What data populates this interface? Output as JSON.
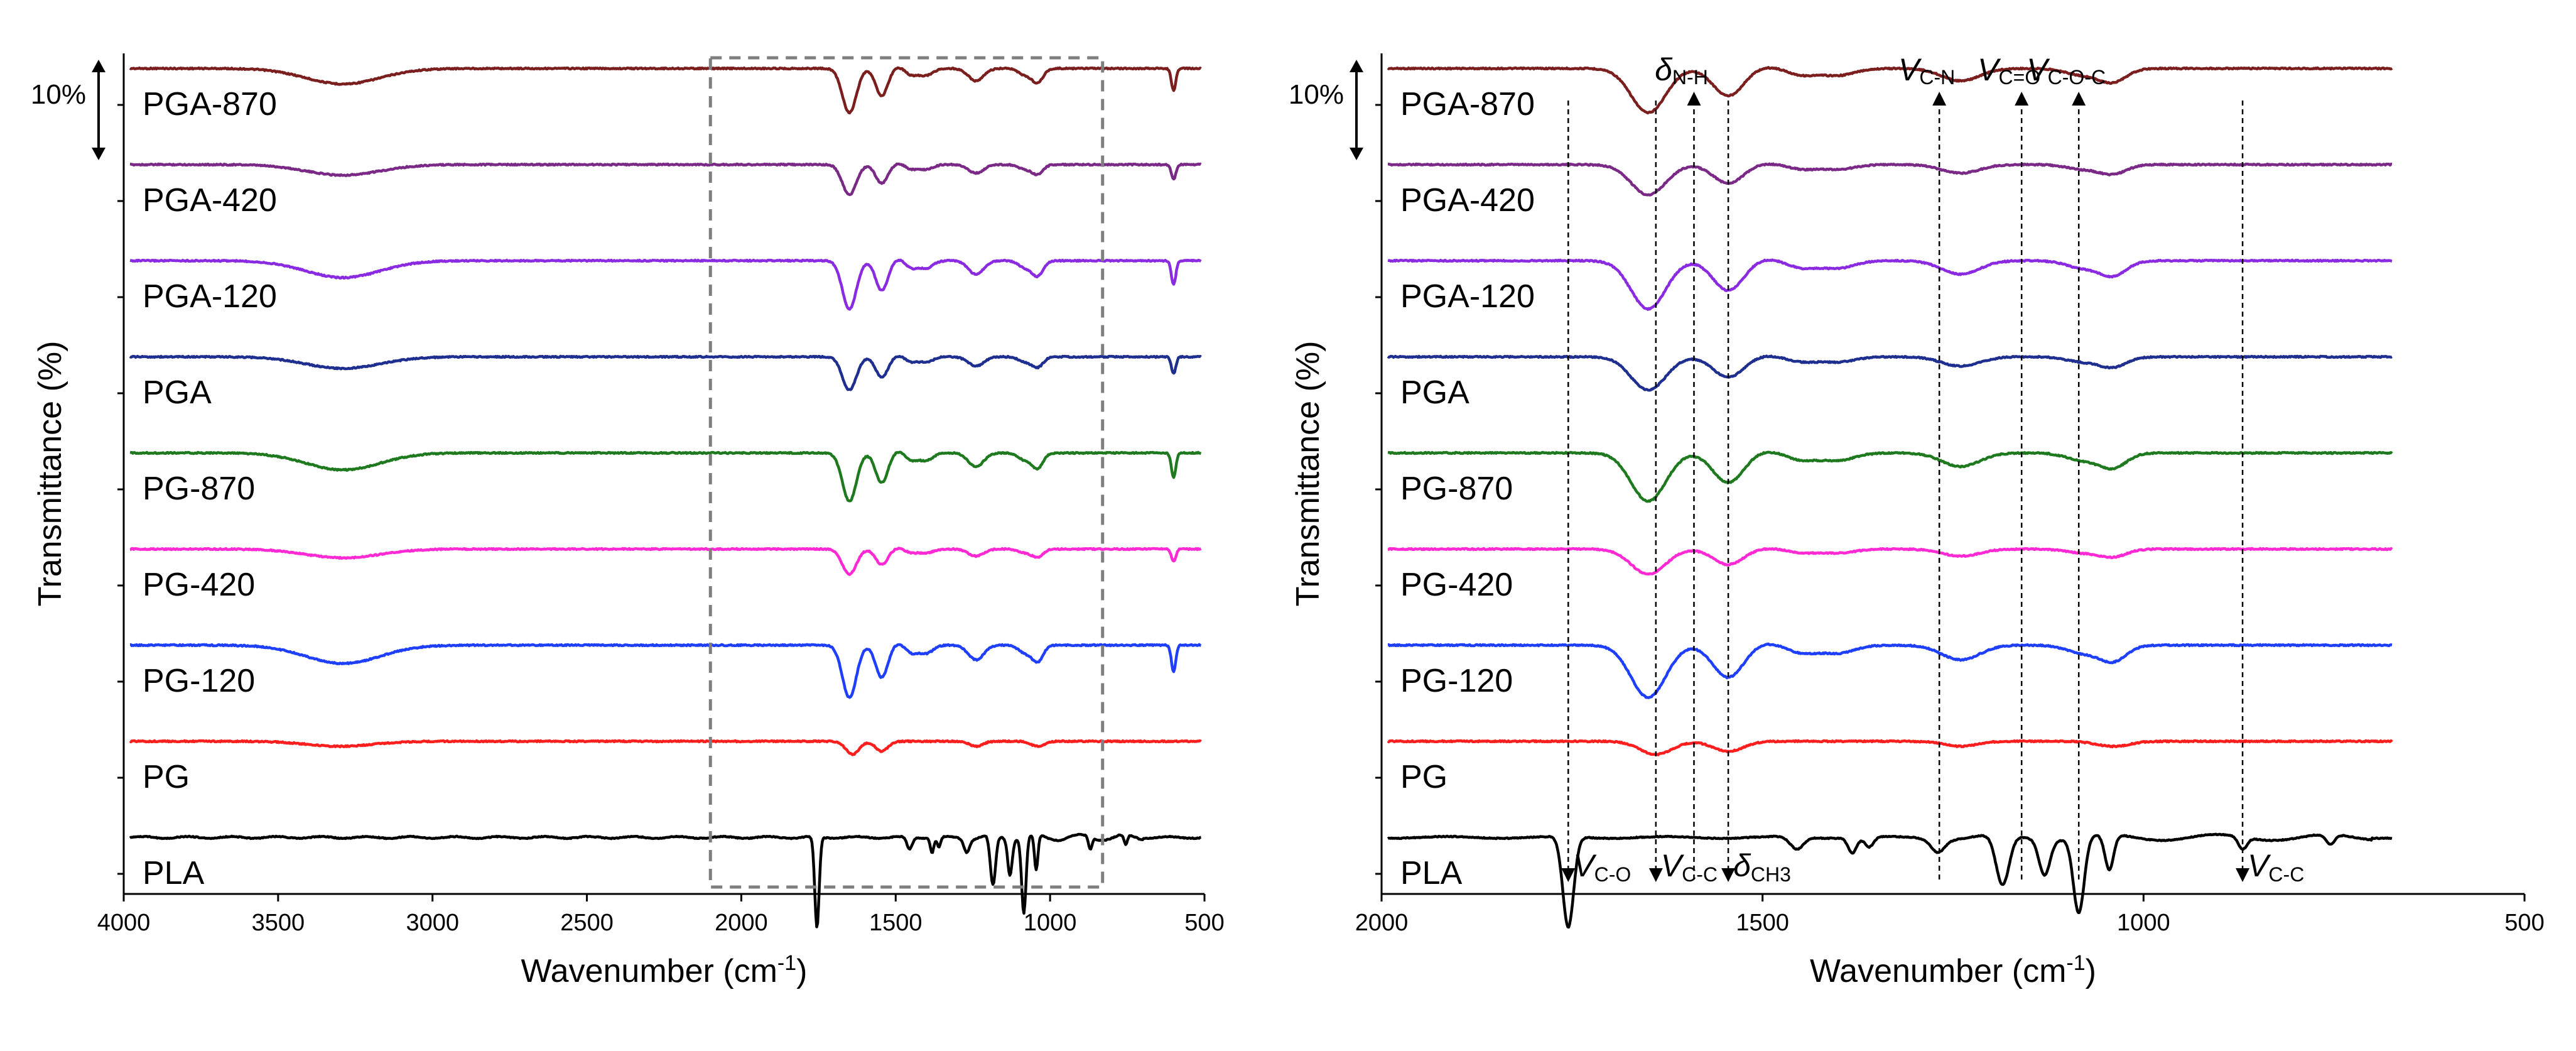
{
  "chart_data": [
    {
      "type": "line",
      "panel": "left",
      "title": "",
      "xlabel": "Wavenumber (cm",
      "xlabel_sup": "-1",
      "xlabel_close": ")",
      "ylabel": "Transmittance (%)",
      "xlim": [
        4000,
        500
      ],
      "x_ticks": [
        "4000",
        "3500",
        "3000",
        "2500",
        "2000",
        "1500",
        "1000",
        "500"
      ],
      "scale_bar_label": "10%",
      "highlight_region": [
        2100,
        830
      ],
      "series": [
        {
          "name": "PGA-870",
          "color": "#7b1e1e",
          "offset": 8
        },
        {
          "name": "PGA-420",
          "color": "#7a2a86",
          "offset": 7
        },
        {
          "name": "PGA-120",
          "color": "#8a2be2",
          "offset": 6
        },
        {
          "name": "PGA",
          "color": "#1f2f8f",
          "offset": 5
        },
        {
          "name": "PG-870",
          "color": "#1f7a1f",
          "offset": 4
        },
        {
          "name": "PG-420",
          "color": "#ff2ad4",
          "offset": 3
        },
        {
          "name": "PG-120",
          "color": "#1f3fff",
          "offset": 2
        },
        {
          "name": "PG",
          "color": "#ff1e1e",
          "offset": 1
        },
        {
          "name": "PLA",
          "color": "#000000",
          "offset": 0
        }
      ]
    },
    {
      "type": "line",
      "panel": "right",
      "title": "",
      "xlabel": "Wavenumber (cm",
      "xlabel_sup": "-1",
      "xlabel_close": ")",
      "ylabel": "Transmittance (%)",
      "xlim": [
        2000,
        500
      ],
      "x_ticks": [
        "2000",
        "1500",
        "1000",
        "500"
      ],
      "scale_bar_label": "10%",
      "series": [
        {
          "name": "PGA-870",
          "color": "#7b1e1e",
          "offset": 8
        },
        {
          "name": "PGA-420",
          "color": "#7a2a86",
          "offset": 7
        },
        {
          "name": "PGA-120",
          "color": "#8a2be2",
          "offset": 6
        },
        {
          "name": "PGA",
          "color": "#1f2f8f",
          "offset": 5
        },
        {
          "name": "PG-870",
          "color": "#1f7a1f",
          "offset": 4
        },
        {
          "name": "PG-420",
          "color": "#ff2ad4",
          "offset": 3
        },
        {
          "name": "PG-120",
          "color": "#1f3fff",
          "offset": 2
        },
        {
          "name": "PG",
          "color": "#ff1e1e",
          "offset": 1
        },
        {
          "name": "PLA",
          "color": "#000000",
          "offset": 0
        }
      ],
      "annotations": [
        {
          "id": "v-co",
          "main": "V",
          "sub": "C-O",
          "wavenumber": 1755,
          "arrow": "down",
          "label_pos": "bottom"
        },
        {
          "id": "v-cc-1",
          "main": "V",
          "sub": "C-C",
          "wavenumber": 1640,
          "arrow": "down",
          "label_pos": "bottom"
        },
        {
          "id": "delta-nh",
          "main": "δ",
          "sub": "N-H",
          "wavenumber": 1590,
          "arrow": "up",
          "label_pos": "top"
        },
        {
          "id": "delta-ch3",
          "main": "δ",
          "sub": "CH3",
          "wavenumber": 1545,
          "arrow": "down",
          "label_pos": "bottom"
        },
        {
          "id": "v-cn",
          "main": "V",
          "sub": "C-N",
          "wavenumber": 1268,
          "arrow": "up",
          "label_pos": "top"
        },
        {
          "id": "v-c-o",
          "main": "V",
          "sub": "C=O",
          "wavenumber": 1160,
          "arrow": "up",
          "label_pos": "top"
        },
        {
          "id": "v-coc",
          "main": "V",
          "sub": "C-O-C",
          "wavenumber": 1085,
          "arrow": "up",
          "label_pos": "top"
        },
        {
          "id": "v-cc-2",
          "main": "V",
          "sub": "C-C",
          "wavenumber": 870,
          "arrow": "down",
          "label_pos": "bottom"
        }
      ]
    }
  ]
}
